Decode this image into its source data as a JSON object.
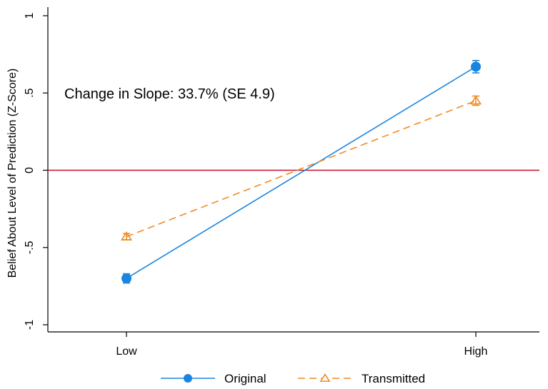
{
  "chart_data": {
    "type": "line",
    "title": "",
    "xlabel": "",
    "ylabel": "Belief About Level of Prediction (Z-Score)",
    "categories": [
      "Low",
      "High"
    ],
    "ylim": [
      -1,
      1
    ],
    "yticks": [
      {
        "value": -1,
        "label": "-1"
      },
      {
        "value": -0.5,
        "label": "-.5"
      },
      {
        "value": 0,
        "label": "0"
      },
      {
        "value": 0.5,
        "label": ".5"
      },
      {
        "value": 1,
        "label": "1"
      }
    ],
    "reference_line": {
      "y": 0,
      "color": "#c8102e"
    },
    "annotation": "Change in Slope: 33.7% (SE 4.9)",
    "grid": false,
    "legend_position": "bottom",
    "series": [
      {
        "name": "Original",
        "color": "#1a85e0",
        "marker": "circle",
        "line_style": "solid",
        "values": [
          -0.7,
          0.67
        ],
        "ci_low": [
          -0.73,
          0.63
        ],
        "ci_high": [
          -0.67,
          0.71
        ]
      },
      {
        "name": "Transmitted",
        "color": "#f08a24",
        "marker": "triangle",
        "line_style": "dashed",
        "values": [
          -0.43,
          0.45
        ],
        "ci_low": [
          -0.45,
          0.42
        ],
        "ci_high": [
          -0.41,
          0.48
        ]
      }
    ]
  }
}
